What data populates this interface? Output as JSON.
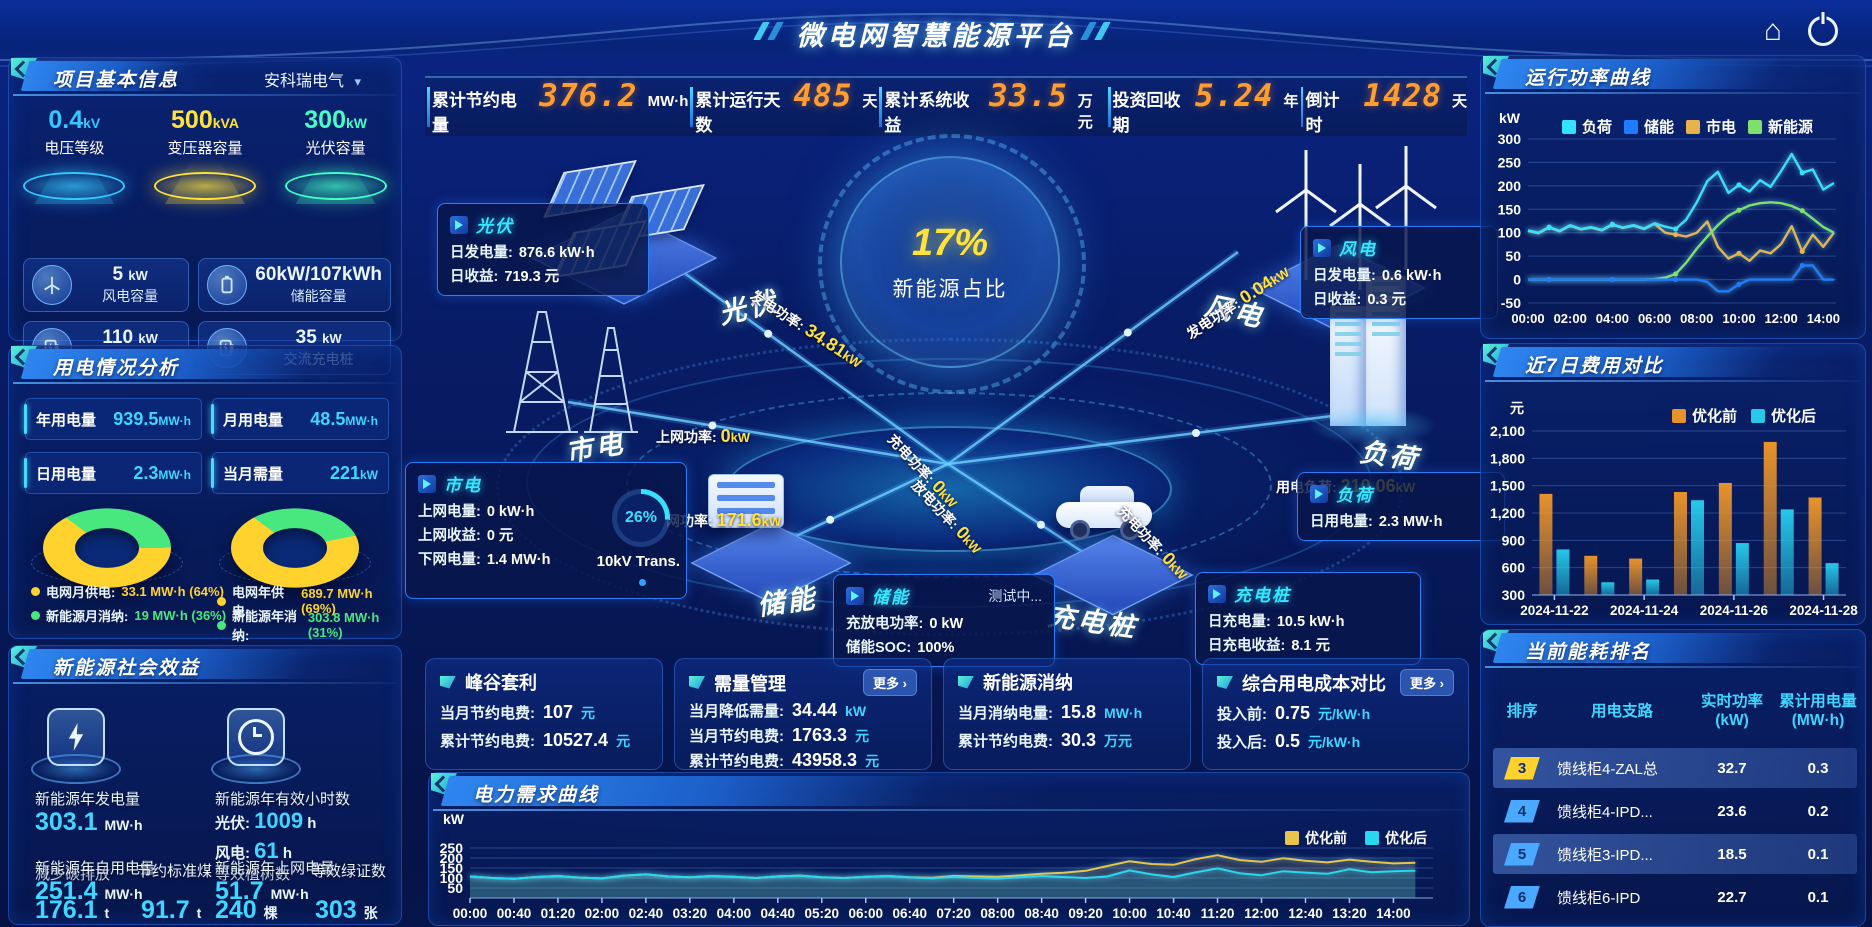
{
  "header": {
    "title": "微电网智慧能源平台"
  },
  "top_stats": [
    {
      "label": "累计节约电量",
      "value": "376.2",
      "unit": "MW·h"
    },
    {
      "label": "累计运行天数",
      "value": "485",
      "unit": "天"
    },
    {
      "label": "累计系统收益",
      "value": "33.5",
      "unit": "万元"
    },
    {
      "label": "投资回收期",
      "value": "5.24",
      "unit": "年"
    },
    {
      "label": "倒计时",
      "value": "1428",
      "unit": "天"
    }
  ],
  "project_info": {
    "title": "项目基本信息",
    "selector": "安科瑞电气",
    "pedestals": [
      {
        "value": "0.4",
        "unit": "kV",
        "label": "电压等级",
        "color": "#35c8ff"
      },
      {
        "value": "500",
        "unit": "kVA",
        "label": "变压器容量",
        "color": "#ffe23a"
      },
      {
        "value": "300",
        "unit": "kW",
        "label": "光伏容量",
        "color": "#41ffc6"
      }
    ],
    "cards": [
      {
        "value": "5",
        "unit": "kW",
        "label": "风电容量",
        "icon": "wind-turbine-icon"
      },
      {
        "value": "60kW/107kWh",
        "unit": "",
        "label": "储能容量",
        "icon": "battery-icon"
      },
      {
        "value": "110",
        "unit": "kW",
        "label": "直流充电桩",
        "icon": "charger-icon"
      },
      {
        "value": "35",
        "unit": "kW",
        "label": "交流充电桩",
        "icon": "charger-icon"
      }
    ]
  },
  "power_usage": {
    "title": "用电情况分析",
    "stats": [
      {
        "label": "年用电量",
        "value": "939.5",
        "unit": "MW·h"
      },
      {
        "label": "月用电量",
        "value": "48.5",
        "unit": "MW·h"
      },
      {
        "label": "日用电量",
        "value": "2.3",
        "unit": "MW·h"
      },
      {
        "label": "当月需量",
        "value": "221",
        "unit": "kW"
      }
    ],
    "donuts": [
      {
        "grid_pct": 64,
        "renewable_pct": 36,
        "legend": [
          {
            "label": "电网月供电:",
            "value": "33.1 MW·h (64%)",
            "color": "#ffd22e"
          },
          {
            "label": "新能源月消纳:",
            "value": "19 MW·h (36%)",
            "color": "#49e87f"
          }
        ]
      },
      {
        "grid_pct": 69,
        "renewable_pct": 31,
        "legend": [
          {
            "label": "电网年供电:",
            "value": "689.7 MW·h (69%)",
            "color": "#ffd22e"
          },
          {
            "label": "新能源年消纳:",
            "value": "303.8 MW·h (31%)",
            "color": "#49e87f"
          }
        ]
      }
    ]
  },
  "social_benefit": {
    "title": "新能源社会效益",
    "items": [
      {
        "label": "新能源年发电量",
        "value": "303.1",
        "unit": "MW·h"
      },
      {
        "label": "新能源年有效小时数",
        "rows": [
          {
            "name": "光伏:",
            "value": "1009",
            "unit": "h"
          },
          {
            "name": "风电:",
            "value": "61",
            "unit": "h"
          }
        ]
      }
    ],
    "bottom_stats": [
      {
        "label": "新能源年自用电量",
        "value": "251.4",
        "unit": "MW·h"
      },
      {
        "label": "减少碳排放",
        "value": "176.1",
        "unit": "t"
      },
      {
        "label": "节约标准煤",
        "value": "91.7",
        "unit": "t"
      },
      {
        "label": "新能源年上网电量",
        "value": "51.7",
        "unit": "MW·h"
      },
      {
        "label": "等效植树数",
        "value": "240",
        "unit": "棵"
      },
      {
        "label": "等效绿证数",
        "value": "303",
        "unit": "张"
      }
    ]
  },
  "diagram": {
    "center_value": "17%",
    "center_label": "新能源占比",
    "nodes": [
      {
        "id": "pv",
        "label": "光伏",
        "icon": "solar-panel-icon"
      },
      {
        "id": "wind",
        "label": "风电",
        "icon": "wind-turbine-icon"
      },
      {
        "id": "grid",
        "label": "市电",
        "icon": "transmission-tower-icon"
      },
      {
        "id": "storage",
        "label": "储能",
        "icon": "battery-storage-icon"
      },
      {
        "id": "charger",
        "label": "充电桩",
        "icon": "ev-car-icon"
      },
      {
        "id": "load",
        "label": "负荷",
        "icon": "building-icon"
      }
    ],
    "flows": [
      {
        "id": "pv_gen",
        "label": "发电功率:",
        "value": "34.81",
        "unit": "kW"
      },
      {
        "id": "wind_gen",
        "label": "发电功率:",
        "value": "0.04",
        "unit": "kW"
      },
      {
        "id": "grid_export",
        "label": "上网功率:",
        "value": "0",
        "unit": "kW"
      },
      {
        "id": "grid_import",
        "label": "下网功率:",
        "value": "171.6",
        "unit": "kW"
      },
      {
        "id": "load_power",
        "label": "用电负荷:",
        "value": "210.06",
        "unit": "kW"
      },
      {
        "id": "storage_charge",
        "label": "充电功率:",
        "value": "0",
        "unit": "kW"
      },
      {
        "id": "storage_discharge",
        "label": "放电功率:",
        "value": "0",
        "unit": "kW"
      },
      {
        "id": "charger_charge",
        "label": "充电功率:",
        "value": "0",
        "unit": "kW"
      }
    ],
    "info_boxes": [
      {
        "id": "pv",
        "title": "光伏",
        "rows": [
          [
            "日发电量:",
            "876.6 kW·h"
          ],
          [
            "日收益:",
            "719.3 元"
          ]
        ]
      },
      {
        "id": "wind",
        "title": "风电",
        "rows": [
          [
            "日发电量:",
            "0.6 kW·h"
          ],
          [
            "日收益:",
            "0.3 元"
          ]
        ]
      },
      {
        "id": "grid",
        "title": "市电",
        "rows": [
          [
            "上网电量:",
            "0 kW·h"
          ],
          [
            "上网收益:",
            "0 元"
          ],
          [
            "下网电量:",
            "1.4 MW·h"
          ]
        ],
        "gauge": {
          "value": "26%",
          "label": "10kV Trans."
        }
      },
      {
        "id": "storage",
        "title": "储能",
        "badge": "测试中...",
        "rows": [
          [
            "充放电功率:",
            "0 kW"
          ],
          [
            "储能SOC:",
            "100%"
          ]
        ]
      },
      {
        "id": "load",
        "title": "负荷",
        "rows": [
          [
            "日用电量:",
            "2.3 MW·h"
          ]
        ]
      },
      {
        "id": "charger",
        "title": "充电桩",
        "rows": [
          [
            "日充电量:",
            "10.5 kW·h"
          ],
          [
            "日充电收益:",
            "8.1 元"
          ]
        ]
      }
    ]
  },
  "benefit_cards": [
    {
      "title": "峰谷套利",
      "more": null,
      "rows": [
        [
          "当月节约电费:",
          "107",
          "元"
        ],
        [
          "累计节约电费:",
          "10527.4",
          "元"
        ]
      ]
    },
    {
      "title": "需量管理",
      "more": "更多 ›",
      "rows": [
        [
          "当月降低需量:",
          "34.44",
          "kW"
        ],
        [
          "当月节约电费:",
          "1763.3",
          "元"
        ],
        [
          "累计节约电费:",
          "43958.3",
          "元"
        ]
      ]
    },
    {
      "title": "新能源消纳",
      "more": null,
      "rows": [
        [
          "当月消纳电量:",
          "15.8",
          "MW·h"
        ],
        [
          "累计节约电费:",
          "30.3",
          "万元"
        ]
      ]
    },
    {
      "title": "综合用电成本对比",
      "more": "更多 ›",
      "rows": [
        [
          "投入前:",
          "0.75",
          "元/kW·h"
        ],
        [
          "投入后:",
          "0.5",
          "元/kW·h"
        ]
      ]
    }
  ],
  "ranking": {
    "title": "当前能耗排名",
    "columns": [
      "排序",
      "用电支路",
      "实时功率\n(kW)",
      "累计用电量\n(MW·h)"
    ],
    "rows": [
      {
        "rank": "3",
        "rank_color": "#ffd22e",
        "branch": "馈线柜4-ZAL总",
        "power": "32.7",
        "energy": "0.3",
        "highlight": true
      },
      {
        "rank": "4",
        "rank_color": "#4aa8ff",
        "branch": "馈线柜4-IPD...",
        "power": "23.6",
        "energy": "0.2",
        "highlight": false
      },
      {
        "rank": "5",
        "rank_color": "#4aa8ff",
        "branch": "馈线柜3-IPD...",
        "power": "18.5",
        "energy": "0.1",
        "highlight": true
      },
      {
        "rank": "6",
        "rank_color": "#4aa8ff",
        "branch": "馈线柜6-IPD",
        "power": "22.7",
        "energy": "0.1",
        "highlight": false
      }
    ]
  },
  "chart_data": [
    {
      "id": "power-curve",
      "type": "line",
      "title": "运行功率曲线",
      "ylabel": "kW",
      "ylim": [
        -50,
        300
      ],
      "yticks": [
        300,
        250,
        200,
        150,
        100,
        50,
        0,
        -50
      ],
      "x_start_hour": 0,
      "x_step_hour": 0.5,
      "x_max_hour": 14.6,
      "xticks": [
        "00:00",
        "02:00",
        "04:00",
        "06:00",
        "08:00",
        "10:00",
        "12:00",
        "14:00"
      ],
      "legend_position": "top",
      "series": [
        {
          "name": "负荷",
          "color": "#35e1ff",
          "values": [
            105,
            100,
            112,
            104,
            116,
            108,
            112,
            106,
            118,
            111,
            116,
            109,
            120,
            113,
            108,
            128,
            165,
            210,
            230,
            185,
            202,
            188,
            212,
            198,
            232,
            268,
            228,
            235,
            192,
            206
          ]
        },
        {
          "name": "储能",
          "color": "#1f7bff",
          "values": [
            0,
            0,
            0,
            0,
            0,
            0,
            0,
            0,
            0,
            0,
            0,
            0,
            0,
            0,
            0,
            0,
            0,
            -5,
            -25,
            -25,
            -10,
            0,
            0,
            0,
            0,
            0,
            30,
            30,
            0,
            0
          ]
        },
        {
          "name": "市电",
          "color": "#e8b34a",
          "values": [
            104,
            99,
            111,
            103,
            115,
            107,
            111,
            105,
            117,
            110,
            115,
            108,
            119,
            100,
            96,
            92,
            100,
            124,
            70,
            45,
            56,
            40,
            62,
            56,
            76,
            114,
            60,
            96,
            70,
            100
          ]
        },
        {
          "name": "新能源",
          "color": "#7ee06a",
          "values": [
            0,
            0,
            0,
            0,
            0,
            0,
            0,
            0,
            0,
            0,
            0,
            0,
            1,
            4,
            12,
            36,
            66,
            92,
            116,
            136,
            148,
            158,
            163,
            165,
            163,
            157,
            147,
            130,
            112,
            100
          ]
        }
      ]
    },
    {
      "id": "cost-compare",
      "type": "bar",
      "title": "近7日费用对比",
      "ylabel": "元",
      "ylim": [
        300,
        2100
      ],
      "yticks": [
        2100,
        1800,
        1500,
        1200,
        900,
        600,
        300
      ],
      "categories": [
        "2024-11-22",
        "2024-11-23",
        "2024-11-24",
        "2024-11-25",
        "2024-11-26",
        "2024-11-27",
        "2024-11-28"
      ],
      "xticks": [
        "2024-11-22",
        "2024-11-24",
        "2024-11-26",
        "2024-11-28"
      ],
      "legend_position": "top",
      "series": [
        {
          "name": "优化前",
          "color": "#e8932a",
          "values": [
            1410,
            730,
            700,
            1430,
            1530,
            1980,
            1370
          ]
        },
        {
          "name": "优化后",
          "color": "#27c8e8",
          "values": [
            800,
            440,
            470,
            1340,
            870,
            1240,
            650
          ]
        }
      ]
    },
    {
      "id": "demand-curve",
      "type": "line",
      "title": "电力需求曲线",
      "ylabel": "kW",
      "ylim": [
        0,
        300
      ],
      "yticks": [
        250,
        200,
        150,
        100,
        50
      ],
      "x_start_hour": 0,
      "x_step_hour": 0.3333,
      "x_max_hour": 14.6,
      "xticks": [
        "00:00",
        "00:40",
        "01:20",
        "02:00",
        "02:40",
        "03:20",
        "04:00",
        "04:40",
        "05:20",
        "06:00",
        "06:40",
        "07:20",
        "08:00",
        "08:40",
        "09:20",
        "10:00",
        "10:40",
        "11:20",
        "12:00",
        "12:40",
        "13:20",
        "14:00"
      ],
      "legend_position": "top-right",
      "series": [
        {
          "name": "优化前",
          "color": "#e8c44a",
          "values": [
            108,
            100,
            96,
            105,
            110,
            102,
            98,
            112,
            118,
            108,
            104,
            110,
            106,
            100,
            108,
            112,
            104,
            100,
            106,
            110,
            104,
            101,
            110,
            108,
            106,
            113,
            121,
            126,
            136,
            160,
            184,
            170,
            166,
            194,
            214,
            190,
            181,
            199,
            186,
            178,
            192,
            181,
            173,
            176
          ]
        },
        {
          "name": "优化后",
          "color": "#27d8f0",
          "values": [
            108,
            100,
            96,
            105,
            110,
            102,
            98,
            112,
            118,
            108,
            104,
            110,
            106,
            100,
            108,
            112,
            104,
            100,
            106,
            110,
            103,
            98,
            105,
            100,
            97,
            104,
            110,
            105,
            100,
            108,
            138,
            118,
            105,
            128,
            148,
            124,
            114,
            134,
            127,
            121,
            144,
            129,
            134,
            137
          ]
        }
      ]
    }
  ]
}
